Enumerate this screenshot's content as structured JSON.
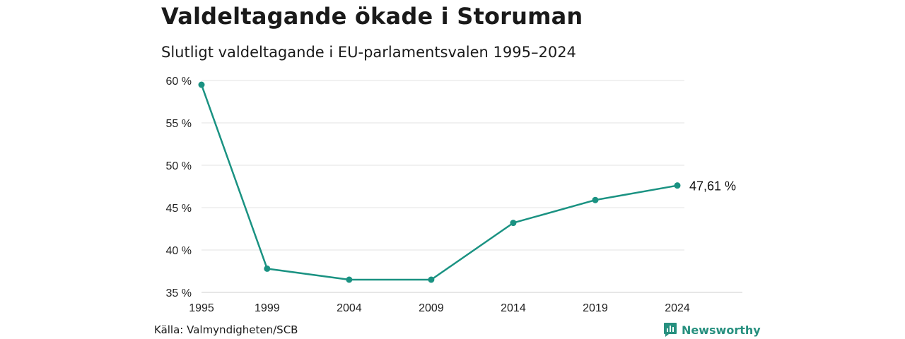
{
  "header": {
    "title": "Valdeltagande ökade i Storuman",
    "subtitle": "Slutligt valdeltagande i EU-parlamentsvalen 1995–2024"
  },
  "footer": {
    "source": "Källa: Valmyndigheten/SCB",
    "brand": "Newsworthy"
  },
  "colors": {
    "line": "#1a9282",
    "grid": "#e3e3e3",
    "brand": "#27907f"
  },
  "chart_data": {
    "type": "line",
    "title": "Valdeltagande ökade i Storuman",
    "subtitle": "Slutligt valdeltagande i EU-parlamentsvalen 1995–2024",
    "x": [
      1995,
      1999,
      2004,
      2009,
      2014,
      2019,
      2024
    ],
    "values": [
      59.5,
      37.8,
      36.5,
      36.5,
      43.2,
      45.9,
      47.61
    ],
    "ylim": [
      35,
      60
    ],
    "yticks": [
      35,
      40,
      45,
      50,
      55,
      60
    ],
    "ytick_labels": [
      "35 %",
      "40 %",
      "45 %",
      "50 %",
      "55 %",
      "60 %"
    ],
    "xtick_labels": [
      "1995",
      "1999",
      "2004",
      "2009",
      "2014",
      "2019",
      "2024"
    ],
    "end_label": "47,61 %",
    "grid": true,
    "legend": "none"
  }
}
